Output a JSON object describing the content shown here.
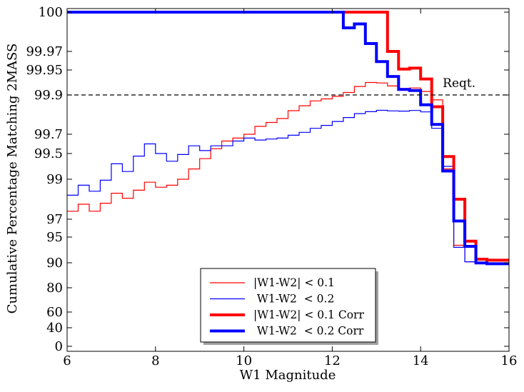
{
  "chart_data": {
    "type": "line",
    "step": true,
    "xlabel": "W1 Magnitude",
    "ylabel": "Cumulative Percentage Matching 2MASS",
    "xlim": [
      6,
      16
    ],
    "ylim": [
      0,
      100
    ],
    "y_scale": "nonlinear (percentage-completeness scale)",
    "x_ticks": [
      6,
      8,
      10,
      12,
      14,
      16
    ],
    "x_tick_labels": [
      "6",
      "8",
      "10",
      "12",
      "14",
      "16"
    ],
    "y_ticks": [
      0,
      40,
      60,
      80,
      90,
      95,
      97,
      99,
      99.5,
      99.7,
      99.9,
      99.95,
      99.97,
      100
    ],
    "y_tick_labels": [
      "0",
      "40",
      "60",
      "80",
      "90",
      "95",
      "97",
      "99",
      "99.5",
      "99.7",
      "99.9",
      "99.95",
      "99.97",
      "100"
    ],
    "grid": false,
    "legend_position": "bottom-center",
    "requirement": {
      "value": 99.9,
      "label": "Reqt."
    },
    "series": [
      {
        "name": "|W1-W2| < 0.1",
        "color": "#ff0000",
        "linewidth": "thin",
        "x": [
          6.0,
          6.25,
          6.5,
          6.75,
          7.0,
          7.25,
          7.5,
          7.75,
          8.0,
          8.25,
          8.5,
          8.75,
          9.0,
          9.25,
          9.5,
          9.75,
          10.0,
          10.25,
          10.5,
          10.75,
          11.0,
          11.25,
          11.5,
          11.75,
          12.0,
          12.25,
          12.5,
          12.75,
          13.0,
          13.25,
          13.5,
          13.75,
          14.0,
          14.25,
          14.5,
          14.75,
          15.0,
          15.25,
          15.5,
          15.75
        ],
        "y": [
          97.4,
          97.75,
          97.4,
          97.8,
          98.3,
          98.05,
          98.45,
          98.85,
          98.6,
          98.7,
          99.0,
          99.2,
          99.4,
          99.55,
          99.63,
          99.66,
          99.7,
          99.74,
          99.76,
          99.78,
          99.82,
          99.845,
          99.87,
          99.88,
          99.893,
          99.905,
          99.917,
          99.925,
          99.924,
          99.918,
          99.913,
          99.914,
          99.907,
          99.875,
          99.2,
          93.4,
          90.2,
          90.0,
          89.9,
          89.9
        ]
      },
      {
        "name": " W1-W2  < 0.2",
        "color": "#0000ff",
        "linewidth": "thin",
        "x": [
          6.0,
          6.25,
          6.5,
          6.75,
          7.0,
          7.25,
          7.5,
          7.75,
          8.0,
          8.25,
          8.5,
          8.75,
          9.0,
          9.25,
          9.5,
          9.75,
          10.0,
          10.25,
          10.5,
          10.75,
          11.0,
          11.25,
          11.5,
          11.75,
          12.0,
          12.25,
          12.5,
          12.75,
          13.0,
          13.25,
          13.5,
          13.75,
          14.0,
          14.25,
          14.5,
          14.75,
          15.0,
          15.25,
          15.5,
          15.75
        ],
        "y": [
          98.2,
          98.7,
          98.4,
          98.95,
          99.3,
          99.15,
          99.45,
          99.6,
          99.5,
          99.35,
          99.48,
          99.58,
          99.53,
          99.58,
          99.58,
          99.63,
          99.66,
          99.64,
          99.65,
          99.66,
          99.69,
          99.71,
          99.73,
          99.745,
          99.765,
          99.785,
          99.805,
          99.815,
          99.822,
          99.819,
          99.818,
          99.821,
          99.814,
          99.73,
          99.25,
          93.0,
          90.2,
          90.0,
          89.9,
          89.9
        ]
      },
      {
        "name": "|W1-W2| < 0.1 Corr",
        "color": "#ff0000",
        "linewidth": "thick",
        "x": [
          6.0,
          13.25,
          13.5,
          13.75,
          14.0,
          14.25,
          14.5,
          14.75,
          15.0,
          15.25,
          15.5,
          16.0
        ],
        "y": [
          100,
          99.97,
          99.951,
          99.952,
          99.932,
          99.84,
          99.44,
          98.0,
          94.2,
          90.7,
          90.5,
          90.5
        ]
      },
      {
        "name": " W1-W2  < 0.2 Corr",
        "color": "#0000ff",
        "linewidth": "thick",
        "x": [
          6.0,
          12.25,
          12.5,
          12.75,
          13.0,
          13.25,
          13.5,
          13.75,
          14.0,
          14.25,
          14.5,
          14.75,
          15.0,
          15.25,
          15.5,
          16.0
        ],
        "y": [
          100,
          99.988,
          99.991,
          99.976,
          99.959,
          99.937,
          99.911,
          99.909,
          99.85,
          99.75,
          99.16,
          96.8,
          93.2,
          89.9,
          89.6,
          89.6
        ]
      }
    ]
  }
}
